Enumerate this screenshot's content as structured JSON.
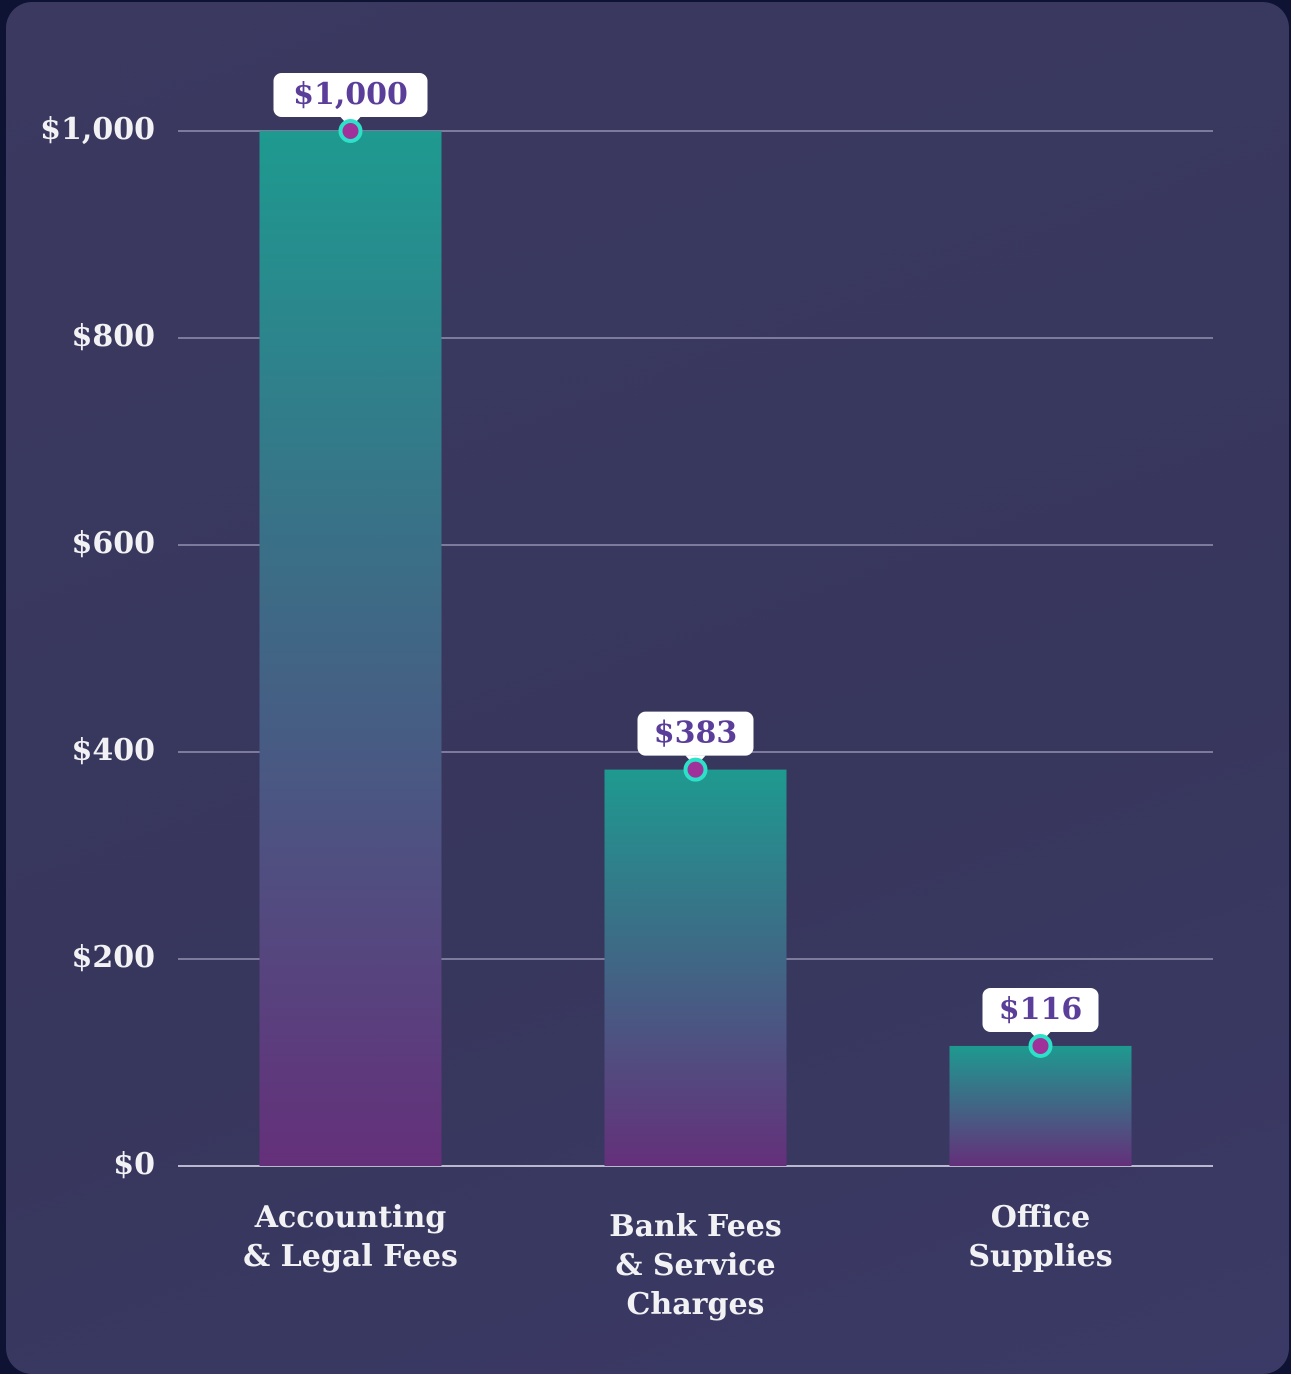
{
  "chart_data": {
    "type": "bar",
    "categories": [
      "Accounting\n& Legal Fees",
      "Bank Fees\n& Service\nCharges",
      "Office\nSupplies"
    ],
    "values": [
      1000,
      383,
      116
    ],
    "value_labels": [
      "$1,000",
      "$383",
      "$116"
    ],
    "colors": [
      "#1e9a90",
      "#64307a"
    ],
    "ylim": [
      0,
      1000
    ],
    "yticks": [
      {
        "value": 0,
        "label": "$0"
      },
      {
        "value": 200,
        "label": "$200"
      },
      {
        "value": 400,
        "label": "$400"
      },
      {
        "value": 600,
        "label": "$600"
      },
      {
        "value": 800,
        "label": "$800"
      },
      {
        "value": 1000,
        "label": "$1,000"
      }
    ],
    "grid": true
  }
}
